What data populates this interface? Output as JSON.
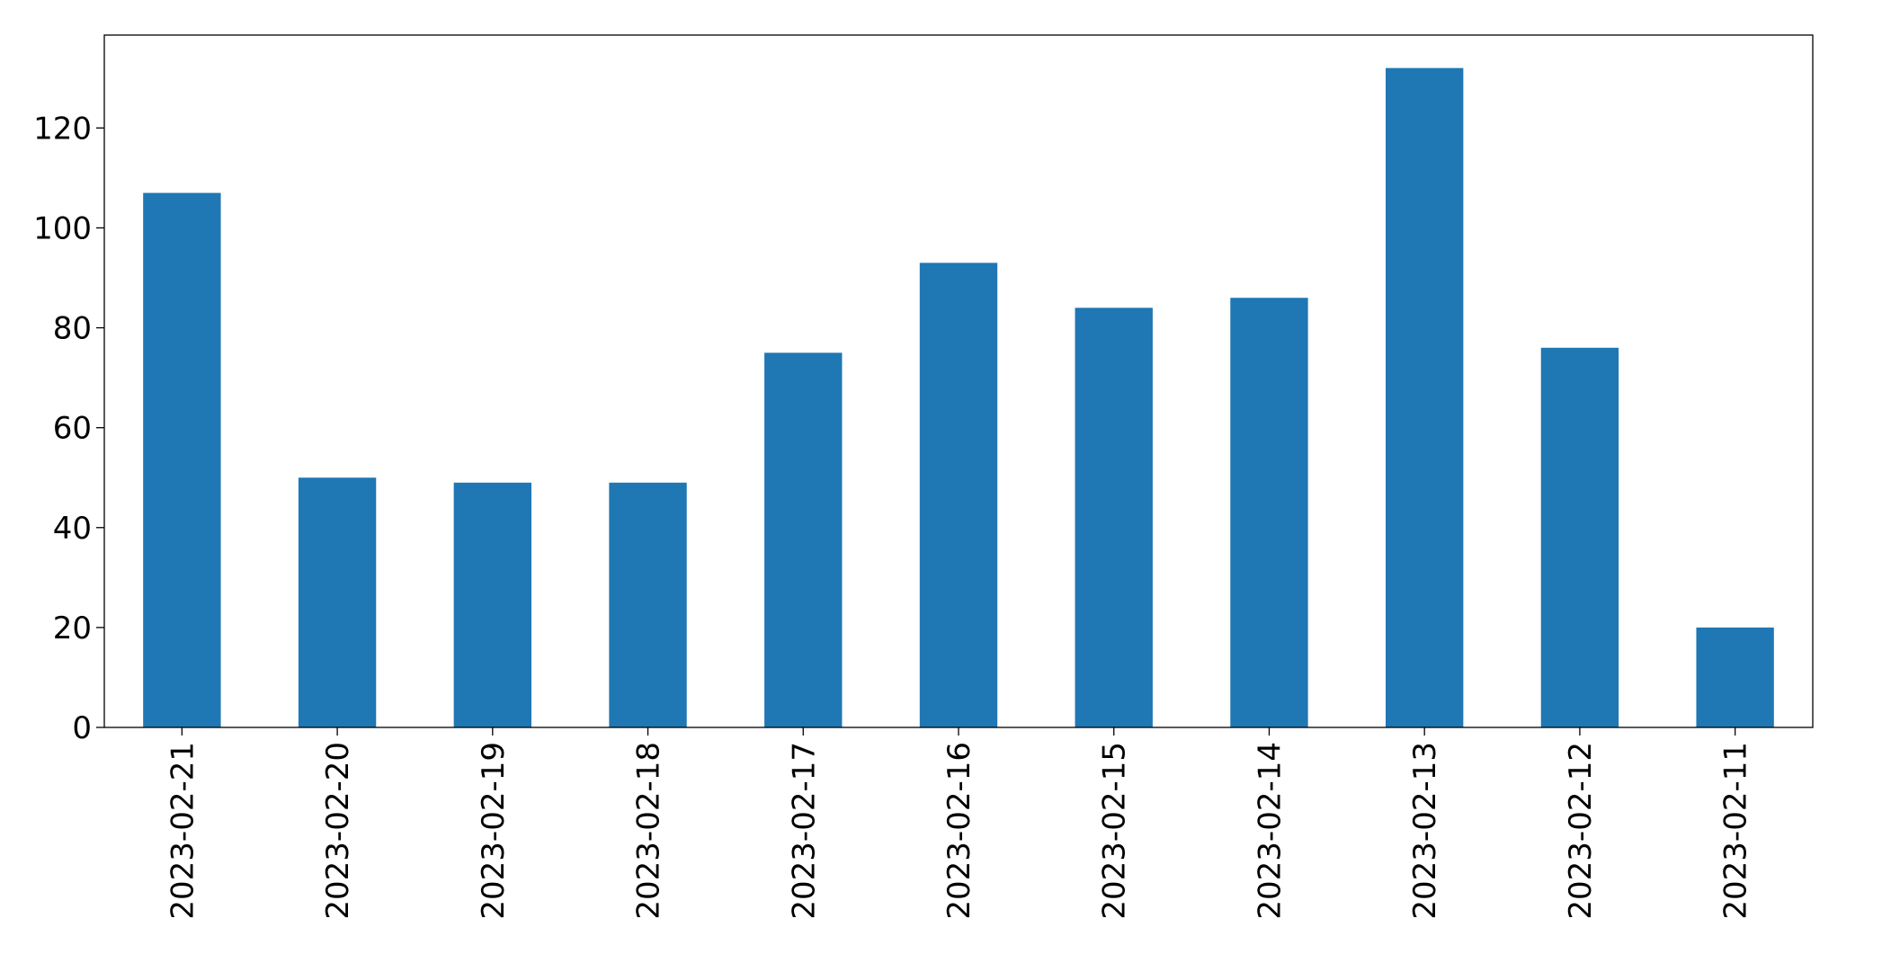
{
  "chart_data": {
    "type": "bar",
    "categories": [
      "2023-02-21",
      "2023-02-20",
      "2023-02-19",
      "2023-02-18",
      "2023-02-17",
      "2023-02-16",
      "2023-02-15",
      "2023-02-14",
      "2023-02-13",
      "2023-02-12",
      "2023-02-11"
    ],
    "values": [
      107,
      50,
      49,
      49,
      75,
      93,
      84,
      86,
      132,
      76,
      20
    ],
    "color": "#1f77b4",
    "ylim": [
      0,
      138.6
    ],
    "yticks": [
      0,
      20,
      40,
      60,
      80,
      100,
      120
    ],
    "grid": false
  }
}
